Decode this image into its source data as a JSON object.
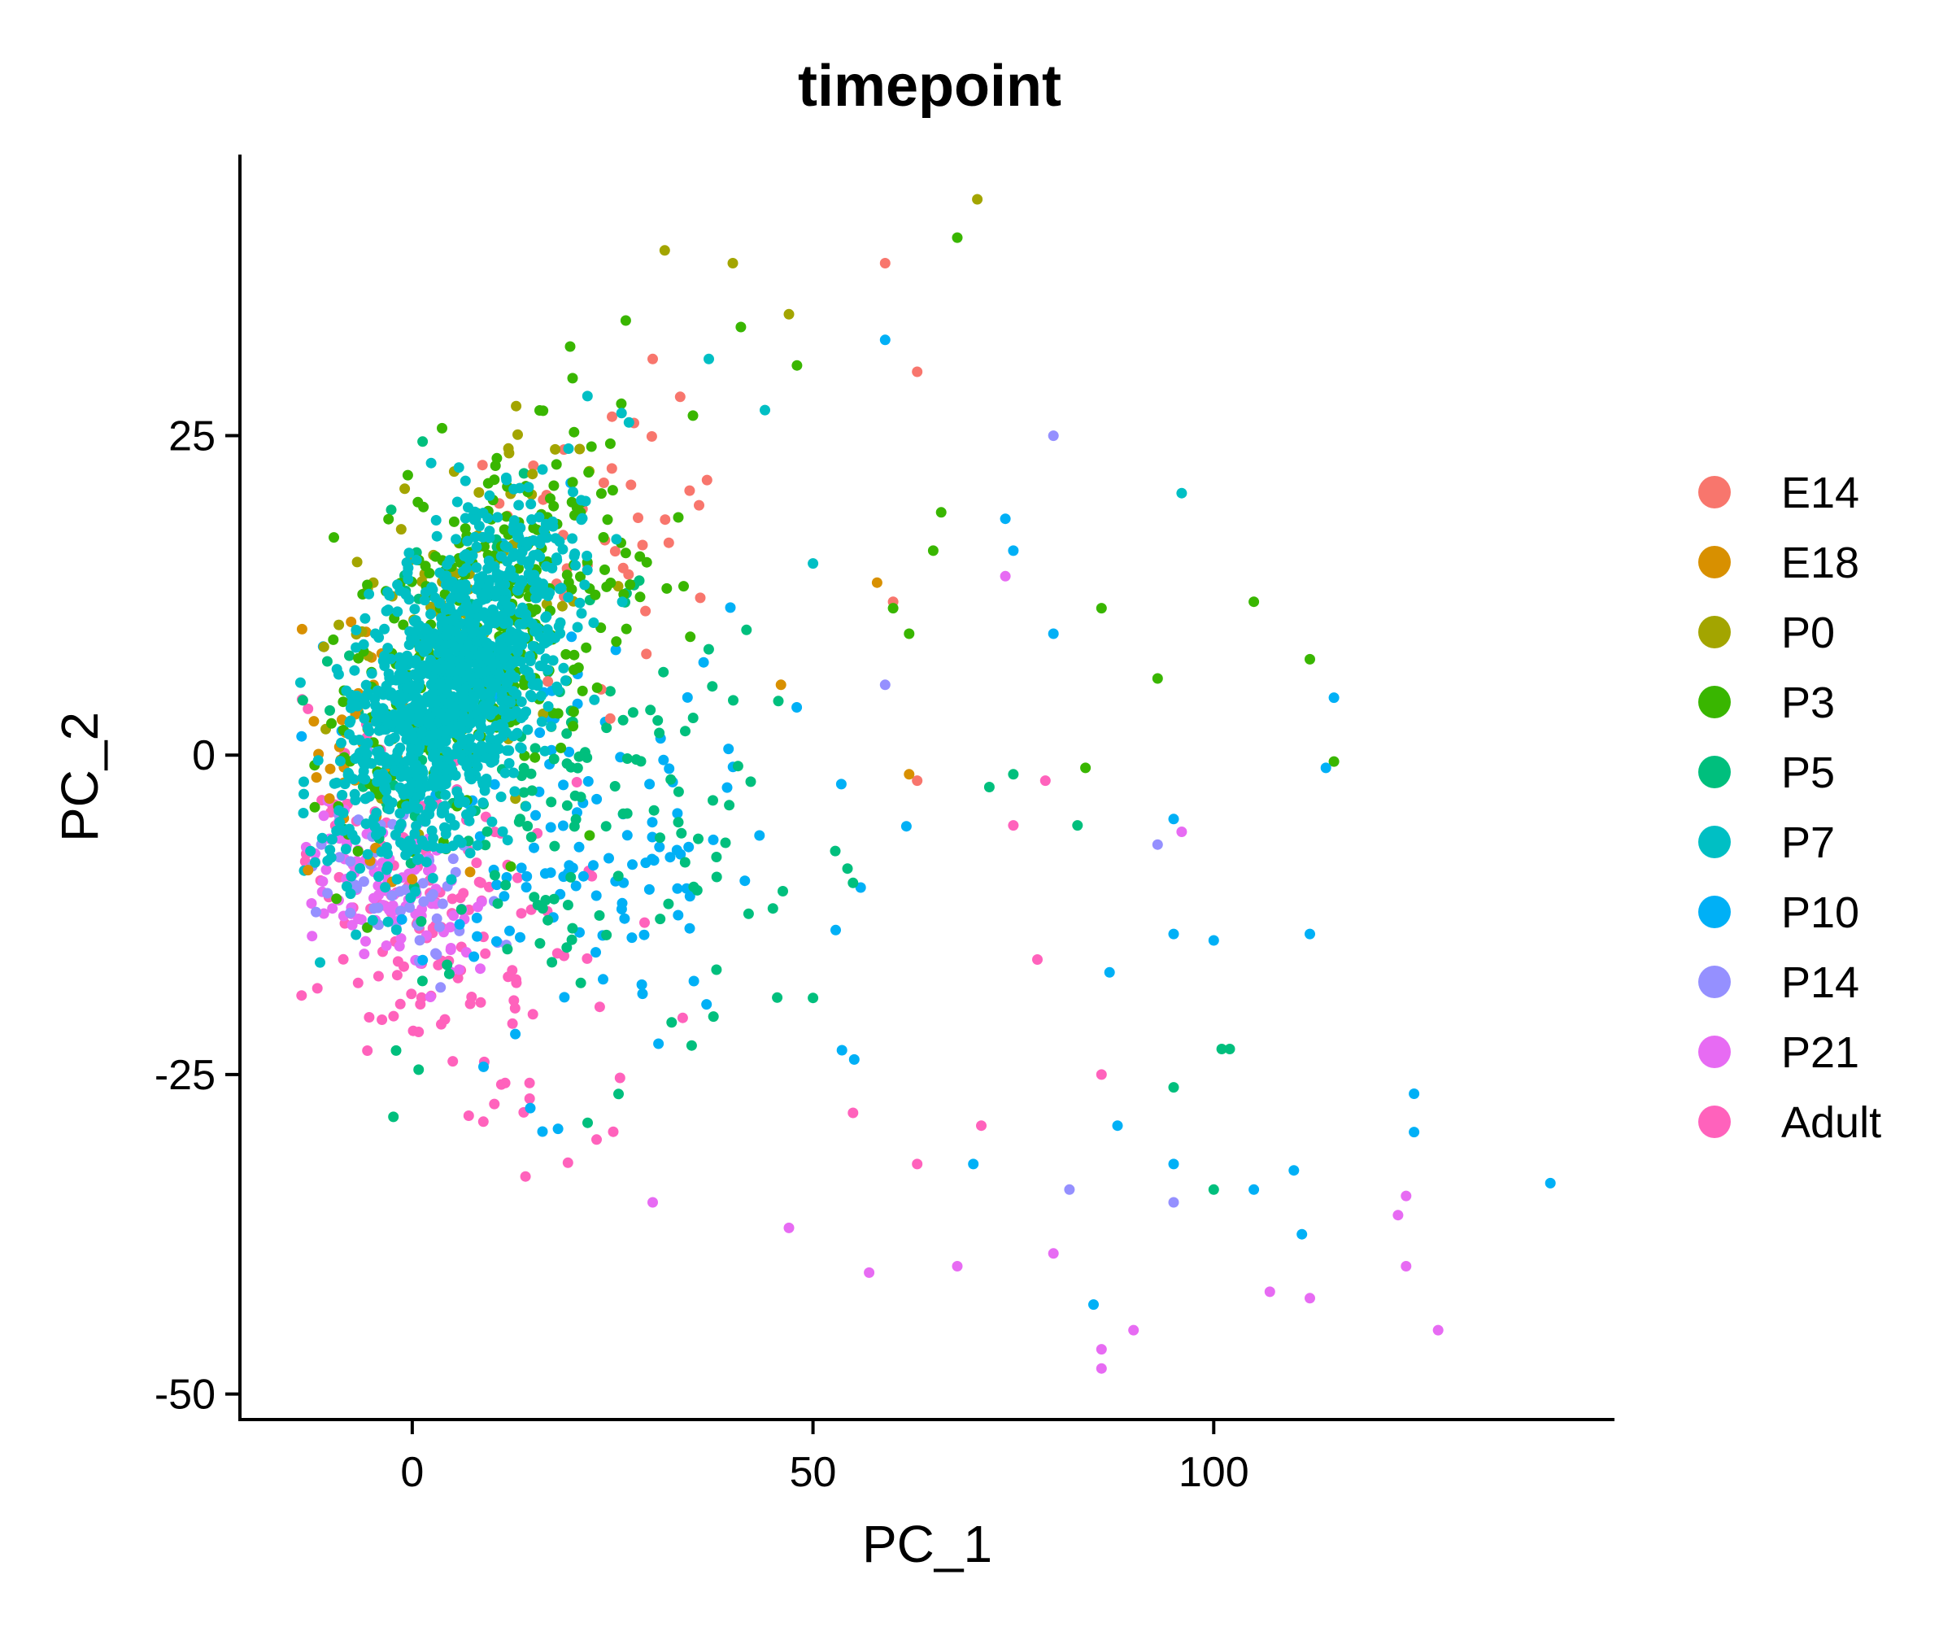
{
  "chart_data": {
    "type": "scatter",
    "title": "timepoint",
    "xlabel": "PC_1",
    "ylabel": "PC_2",
    "xlim": [
      -21.5,
      150
    ],
    "ylim": [
      -52,
      47
    ],
    "xticks": [
      0,
      50,
      100
    ],
    "yticks": [
      -50,
      -25,
      0,
      25
    ],
    "xtick_labels": [
      "0",
      "50",
      "100"
    ],
    "ytick_labels": [
      "-50",
      "-25",
      "0",
      "25"
    ],
    "grid": false,
    "legend_position": "right",
    "series": [
      {
        "name": "E14",
        "color": "#F8766D",
        "points": [
          [
            59,
            38.5
          ],
          [
            63,
            30
          ],
          [
            30,
            31
          ],
          [
            60,
            12
          ],
          [
            63,
            -2
          ]
        ]
      },
      {
        "name": "E18",
        "color": "#D89000",
        "points": [
          [
            -13,
            -9
          ],
          [
            58,
            13.5
          ],
          [
            46,
            5.5
          ],
          [
            62,
            -1.5
          ]
        ]
      },
      {
        "name": "P0",
        "color": "#A3A500",
        "points": [
          [
            31.5,
            39.5
          ],
          [
            40,
            38.5
          ],
          [
            47,
            34.5
          ],
          [
            70.5,
            43.5
          ],
          [
            15,
            22
          ],
          [
            12,
            24
          ]
        ]
      },
      {
        "name": "P3",
        "color": "#39B600",
        "points": [
          [
            68,
            40.5
          ],
          [
            41,
            33.5
          ],
          [
            48,
            30.5
          ],
          [
            20,
            29.5
          ],
          [
            66,
            19
          ],
          [
            65,
            16
          ],
          [
            86,
            11.5
          ],
          [
            105,
            12
          ],
          [
            112,
            7.5
          ],
          [
            115,
            -0.5
          ],
          [
            93,
            6
          ],
          [
            84,
            -1
          ],
          [
            60,
            11.5
          ],
          [
            62,
            9.5
          ]
        ]
      },
      {
        "name": "P5",
        "color": "#00BF7D",
        "points": [
          [
            75,
            -1.5
          ],
          [
            72,
            -2.5
          ],
          [
            83,
            -5.5
          ],
          [
            95,
            -26
          ],
          [
            100,
            -34
          ],
          [
            101,
            -23
          ],
          [
            102,
            -23
          ],
          [
            45,
            -12
          ],
          [
            50,
            -19
          ],
          [
            55,
            -10
          ]
        ]
      },
      {
        "name": "P7",
        "color": "#00BFC4",
        "points": [
          [
            96,
            20.5
          ],
          [
            37,
            31
          ],
          [
            44,
            27
          ],
          [
            50,
            15
          ]
        ]
      },
      {
        "name": "P10",
        "color": "#00B0F6",
        "points": [
          [
            59,
            32.5
          ],
          [
            74,
            18.5
          ],
          [
            75,
            16
          ],
          [
            80,
            9.5
          ],
          [
            115,
            4.5
          ],
          [
            114,
            -1
          ],
          [
            95,
            -5
          ],
          [
            112,
            -14
          ],
          [
            100,
            -14.5
          ],
          [
            95,
            -14
          ],
          [
            87,
            -17
          ],
          [
            142,
            -33.5
          ],
          [
            125,
            -26.5
          ],
          [
            125,
            -29.5
          ],
          [
            110,
            -32.5
          ],
          [
            111,
            -37.5
          ],
          [
            105,
            -34
          ],
          [
            95,
            -32
          ],
          [
            88,
            -29
          ],
          [
            85,
            -43
          ],
          [
            70,
            -32
          ]
        ]
      },
      {
        "name": "P14",
        "color": "#9590FF",
        "points": [
          [
            80,
            25
          ],
          [
            93,
            -7
          ],
          [
            59,
            5.5
          ],
          [
            95,
            -35
          ],
          [
            82,
            -34
          ]
        ]
      },
      {
        "name": "P21",
        "color": "#E76BF3",
        "points": [
          [
            74,
            14
          ],
          [
            96,
            -6
          ],
          [
            124,
            -34.5
          ],
          [
            123,
            -36
          ],
          [
            124,
            -40
          ],
          [
            107,
            -42
          ],
          [
            112,
            -42.5
          ],
          [
            128,
            -45
          ],
          [
            90,
            -45
          ],
          [
            86,
            -46.5
          ],
          [
            86,
            -48
          ],
          [
            30,
            -35
          ],
          [
            47,
            -37
          ],
          [
            57,
            -40.5
          ],
          [
            68,
            -40
          ],
          [
            80,
            -39
          ]
        ]
      },
      {
        "name": "Adult",
        "color": "#FF62BC",
        "points": [
          [
            79,
            -2
          ],
          [
            75,
            -5.5
          ],
          [
            78,
            -16
          ],
          [
            86,
            -25
          ],
          [
            71,
            -29
          ],
          [
            63,
            -32
          ],
          [
            55,
            -28
          ]
        ]
      }
    ]
  }
}
